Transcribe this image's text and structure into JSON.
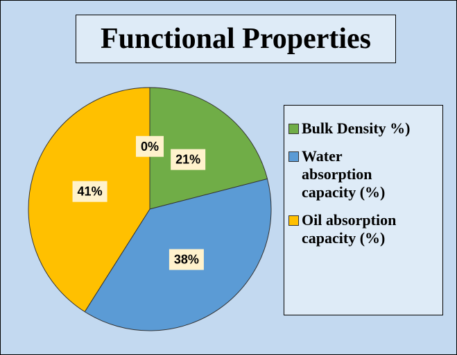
{
  "chart_data": {
    "type": "pie",
    "title": "Functional Properties",
    "categories": [
      null,
      "Bulk Density %)",
      "Water absorption capacity (%)",
      "Oil absorption capacity (%)"
    ],
    "values": [
      0,
      21,
      38,
      41
    ],
    "value_labels": [
      "0%",
      "21%",
      "38%",
      "41%"
    ],
    "colors": [
      "#a5a5a5",
      "#70ad47",
      "#5b9bd5",
      "#ffc000"
    ],
    "legend": "right"
  }
}
